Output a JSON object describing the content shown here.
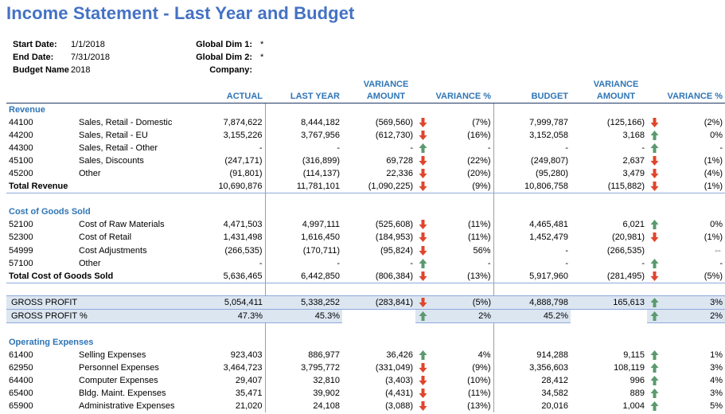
{
  "title": "Income Statement - Last Year and Budget",
  "params": {
    "start_date_label": "Start Date:",
    "start_date": "1/1/2018",
    "end_date_label": "End Date:",
    "end_date": "7/31/2018",
    "budget_name_label": "Budget Name",
    "budget_name": "2018",
    "global_dim1_label": "Global Dim 1:",
    "global_dim1": "*",
    "global_dim2_label": "Global Dim 2:",
    "global_dim2": "*",
    "company_label": "Company:"
  },
  "headers": {
    "actual": "ACTUAL",
    "last_year": "LAST YEAR",
    "variance_amount_1": "VARIANCE",
    "variance_amount_2": "AMOUNT",
    "variance_pct": "VARIANCE %",
    "budget": "BUDGET",
    "budget_variance_amount_1": "VARIANCE",
    "budget_variance_amount_2": "AMOUNT",
    "budget_variance_pct": "VARIANCE %"
  },
  "arrow_colors": {
    "up": "#5a9a6e",
    "down": "#e0452c"
  },
  "rows": [
    {
      "type": "section",
      "label": "Revenue"
    },
    {
      "type": "line",
      "acct": "44100",
      "name": "Sales, Retail - Domestic",
      "actual": "7,874,622",
      "ly": "8,444,182",
      "var": "(569,560)",
      "var_dir": "down",
      "var_pct": "(7%)",
      "budget": "7,999,787",
      "bvar": "(125,166)",
      "bvar_dir": "down",
      "bvar_pct": "(2%)"
    },
    {
      "type": "line",
      "acct": "44200",
      "name": "Sales, Retail - EU",
      "actual": "3,155,226",
      "ly": "3,767,956",
      "var": "(612,730)",
      "var_dir": "down",
      "var_pct": "(16%)",
      "budget": "3,152,058",
      "bvar": "3,168",
      "bvar_dir": "up",
      "bvar_pct": "0%"
    },
    {
      "type": "line",
      "acct": "44300",
      "name": "Sales, Retail - Other",
      "actual": "-",
      "ly": "-",
      "var": "-",
      "var_dir": "up",
      "var_pct": "-",
      "budget": "-",
      "bvar": "-",
      "bvar_dir": "up",
      "bvar_pct": "-"
    },
    {
      "type": "line",
      "acct": "45100",
      "name": "Sales, Discounts",
      "actual": "(247,171)",
      "ly": "(316,899)",
      "var": "69,728",
      "var_dir": "down",
      "var_pct": "(22%)",
      "budget": "(249,807)",
      "bvar": "2,637",
      "bvar_dir": "down",
      "bvar_pct": "(1%)"
    },
    {
      "type": "line",
      "acct": "45200",
      "name": "Other",
      "actual": "(91,801)",
      "ly": "(114,137)",
      "var": "22,336",
      "var_dir": "down",
      "var_pct": "(20%)",
      "budget": "(95,280)",
      "bvar": "3,479",
      "bvar_dir": "down",
      "bvar_pct": "(4%)"
    },
    {
      "type": "total",
      "label": "Total Revenue",
      "actual": "10,690,876",
      "ly": "11,781,101",
      "var": "(1,090,225)",
      "var_dir": "down",
      "var_pct": "(9%)",
      "budget": "10,806,758",
      "bvar": "(115,882)",
      "bvar_dir": "down",
      "bvar_pct": "(1%)"
    },
    {
      "type": "blank"
    },
    {
      "type": "section",
      "label": "Cost of Goods Sold"
    },
    {
      "type": "line",
      "acct": "52100",
      "name": "Cost of Raw Materials",
      "actual": "4,471,503",
      "ly": "4,997,111",
      "var": "(525,608)",
      "var_dir": "down",
      "var_pct": "(11%)",
      "budget": "4,465,481",
      "bvar": "6,021",
      "bvar_dir": "up",
      "bvar_pct": "0%"
    },
    {
      "type": "line",
      "acct": "52300",
      "name": "Cost of Retail",
      "actual": "1,431,498",
      "ly": "1,616,450",
      "var": "(184,953)",
      "var_dir": "down",
      "var_pct": "(11%)",
      "budget": "1,452,479",
      "bvar": "(20,981)",
      "bvar_dir": "down",
      "bvar_pct": "(1%)"
    },
    {
      "type": "line",
      "acct": "54999",
      "name": "Cost Adjustments",
      "actual": "(266,535)",
      "ly": "(170,711)",
      "var": "(95,824)",
      "var_dir": "down",
      "var_pct": "56%",
      "budget": "-",
      "bvar": "(266,535)",
      "bvar_dir": "none",
      "bvar_pct": "",
      "bvar_pct_icon": "side"
    },
    {
      "type": "line",
      "acct": "57100",
      "name": "Other",
      "actual": "-",
      "ly": "-",
      "var": "-",
      "var_dir": "up",
      "var_pct": "-",
      "budget": "-",
      "bvar": "-",
      "bvar_dir": "up",
      "bvar_pct": "-"
    },
    {
      "type": "total",
      "label": "Total Cost of Goods Sold",
      "actual": "5,636,465",
      "ly": "6,442,850",
      "var": "(806,384)",
      "var_dir": "down",
      "var_pct": "(13%)",
      "budget": "5,917,960",
      "bvar": "(281,495)",
      "bvar_dir": "down",
      "bvar_pct": "(5%)"
    },
    {
      "type": "blank"
    },
    {
      "type": "gp",
      "label": "GROSS PROFIT",
      "actual": "5,054,411",
      "ly": "5,338,252",
      "var": "(283,841)",
      "var_dir": "down",
      "var_pct": "(5%)",
      "budget": "4,888,798",
      "bvar": "165,613",
      "bvar_dir": "up",
      "bvar_pct": "3%"
    },
    {
      "type": "gpp",
      "label": "GROSS PROFIT %",
      "actual": "47.3%",
      "ly": "45.3%",
      "var": "",
      "var_dir": "up",
      "var_pct": "2%",
      "budget": "45.2%",
      "bvar": "",
      "bvar_dir": "up",
      "bvar_pct": "2%"
    },
    {
      "type": "blank"
    },
    {
      "type": "section",
      "label": "Operating Expenses"
    },
    {
      "type": "line",
      "acct": "61400",
      "name": "Selling Expenses",
      "actual": "923,403",
      "ly": "886,977",
      "var": "36,426",
      "var_dir": "up",
      "var_pct": "4%",
      "budget": "914,288",
      "bvar": "9,115",
      "bvar_dir": "up",
      "bvar_pct": "1%"
    },
    {
      "type": "line",
      "acct": "62950",
      "name": "Personnel Expenses",
      "actual": "3,464,723",
      "ly": "3,795,772",
      "var": "(331,049)",
      "var_dir": "down",
      "var_pct": "(9%)",
      "budget": "3,356,603",
      "bvar": "108,119",
      "bvar_dir": "up",
      "bvar_pct": "3%"
    },
    {
      "type": "line",
      "acct": "64400",
      "name": "Computer Expenses",
      "actual": "29,407",
      "ly": "32,810",
      "var": "(3,403)",
      "var_dir": "down",
      "var_pct": "(10%)",
      "budget": "28,412",
      "bvar": "996",
      "bvar_dir": "up",
      "bvar_pct": "4%"
    },
    {
      "type": "line",
      "acct": "65400",
      "name": "Bldg. Maint. Expenses",
      "actual": "35,471",
      "ly": "39,902",
      "var": "(4,431)",
      "var_dir": "down",
      "var_pct": "(11%)",
      "budget": "34,582",
      "bvar": "889",
      "bvar_dir": "up",
      "bvar_pct": "3%"
    },
    {
      "type": "line",
      "acct": "65900",
      "name": "Administrative Expenses",
      "actual": "21,020",
      "ly": "24,108",
      "var": "(3,088)",
      "var_dir": "down",
      "var_pct": "(13%)",
      "budget": "20,016",
      "bvar": "1,004",
      "bvar_dir": "up",
      "bvar_pct": "5%"
    }
  ]
}
